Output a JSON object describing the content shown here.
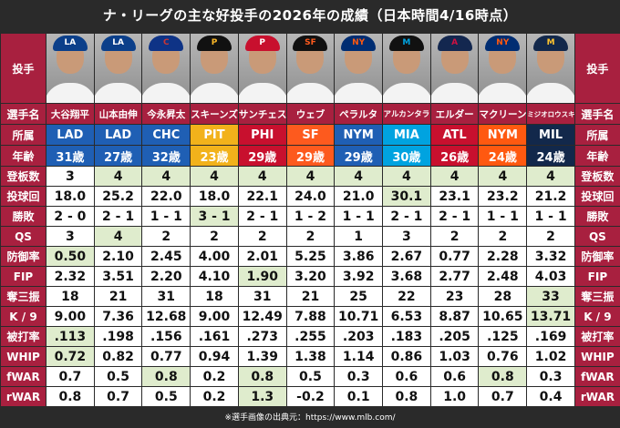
{
  "title": "ナ・リーグの主な好投手の2026年の成績（日本時間4/16時点）",
  "row_labels": {
    "photo": "投手",
    "name": "選手名",
    "team": "所属",
    "age": "年齢"
  },
  "players": [
    {
      "name": "大谷翔平",
      "team": "LAD",
      "age": "31歳",
      "cap_color": "#0b3f8a",
      "logo": "LA",
      "logo_color": "#ffffff",
      "body_color": "#f3f3f3",
      "team_bg": "#1f5fb4",
      "team_fg": "#ffffff"
    },
    {
      "name": "山本由伸",
      "team": "LAD",
      "age": "27歳",
      "cap_color": "#0b3f8a",
      "logo": "LA",
      "logo_color": "#ffffff",
      "body_color": "#f3f3f3",
      "team_bg": "#1f5fb4",
      "team_fg": "#ffffff"
    },
    {
      "name": "今永昇太",
      "team": "CHC",
      "age": "32歳",
      "cap_color": "#0e3386",
      "logo": "C",
      "logo_color": "#cc3433",
      "body_color": "#f3f3f3",
      "team_bg": "#1f5fb4",
      "team_fg": "#ffffff"
    },
    {
      "name": "スキーンズ",
      "team": "PIT",
      "age": "23歳",
      "cap_color": "#111111",
      "logo": "P",
      "logo_color": "#fdb827",
      "body_color": "#f3f3f3",
      "team_bg": "#f2b21b",
      "team_fg": "#ffffff"
    },
    {
      "name": "サンチェス",
      "team": "PHI",
      "age": "29歳",
      "cap_color": "#c8102e",
      "logo": "P",
      "logo_color": "#ffffff",
      "body_color": "#f3f3f3",
      "team_bg": "#c8102e",
      "team_fg": "#ffffff"
    },
    {
      "name": "ウェブ",
      "team": "SF",
      "age": "29歳",
      "cap_color": "#111111",
      "logo": "SF",
      "logo_color": "#fd5a1e",
      "body_color": "#f3f3f3",
      "team_bg": "#fd5a1e",
      "team_fg": "#ffffff"
    },
    {
      "name": "ペラルタ",
      "team": "NYM",
      "age": "29歳",
      "cap_color": "#002d72",
      "logo": "NY",
      "logo_color": "#ff5910",
      "body_color": "#f3f3f3",
      "team_bg": "#1f5fb4",
      "team_fg": "#ffffff"
    },
    {
      "name": "アルカンタラ",
      "team": "MIA",
      "age": "30歳",
      "cap_color": "#111111",
      "logo": "M",
      "logo_color": "#00a3e0",
      "body_color": "#f3f3f3",
      "team_bg": "#00a3e0",
      "team_fg": "#ffffff"
    },
    {
      "name": "エルダー",
      "team": "ATL",
      "age": "26歳",
      "cap_color": "#13274f",
      "logo": "A",
      "logo_color": "#ce1141",
      "body_color": "#f3f3f3",
      "team_bg": "#c8102e",
      "team_fg": "#ffffff"
    },
    {
      "name": "マクリーン",
      "team": "NYM",
      "age": "24歳",
      "cap_color": "#002d72",
      "logo": "NY",
      "logo_color": "#ff5910",
      "body_color": "#f3f3f3",
      "team_bg": "#ff5910",
      "team_fg": "#ffffff"
    },
    {
      "name": "ミジオロウスキー",
      "team": "MIL",
      "age": "24歳",
      "cap_color": "#12284b",
      "logo": "M",
      "logo_color": "#ffc52f",
      "body_color": "#f3f3f3",
      "team_bg": "#12284b",
      "team_fg": "#ffffff"
    }
  ],
  "stats": [
    {
      "label": "登板数",
      "values": [
        "3",
        "4",
        "4",
        "4",
        "4",
        "4",
        "4",
        "4",
        "4",
        "4",
        "4"
      ],
      "hl": [
        false,
        true,
        true,
        true,
        true,
        true,
        true,
        true,
        true,
        true,
        true
      ]
    },
    {
      "label": "投球回",
      "values": [
        "18.0",
        "25.2",
        "22.0",
        "18.0",
        "22.1",
        "24.0",
        "21.0",
        "30.1",
        "23.1",
        "23.2",
        "21.2"
      ],
      "hl": [
        false,
        false,
        false,
        false,
        false,
        false,
        false,
        true,
        false,
        false,
        false
      ]
    },
    {
      "label": "勝敗",
      "values": [
        "2 - 0",
        "2 - 1",
        "1 - 1",
        "3 - 1",
        "2 - 1",
        "1 - 2",
        "1 - 1",
        "2 - 1",
        "2 - 1",
        "1 - 1",
        "1 - 1"
      ],
      "hl": [
        false,
        false,
        false,
        true,
        false,
        false,
        false,
        false,
        false,
        false,
        false
      ]
    },
    {
      "label": "QS",
      "values": [
        "3",
        "4",
        "2",
        "2",
        "2",
        "2",
        "1",
        "3",
        "2",
        "2",
        "2"
      ],
      "hl": [
        false,
        true,
        false,
        false,
        false,
        false,
        false,
        false,
        false,
        false,
        false
      ]
    },
    {
      "label": "防御率",
      "values": [
        "0.50",
        "2.10",
        "2.45",
        "4.00",
        "2.01",
        "5.25",
        "3.86",
        "2.67",
        "0.77",
        "2.28",
        "3.32"
      ],
      "hl": [
        true,
        false,
        false,
        false,
        false,
        false,
        false,
        false,
        false,
        false,
        false
      ]
    },
    {
      "label": "FIP",
      "values": [
        "2.32",
        "3.51",
        "2.20",
        "4.10",
        "1.90",
        "3.20",
        "3.92",
        "3.68",
        "2.77",
        "2.48",
        "4.03"
      ],
      "hl": [
        false,
        false,
        false,
        false,
        true,
        false,
        false,
        false,
        false,
        false,
        false
      ]
    },
    {
      "label": "奪三振",
      "values": [
        "18",
        "21",
        "31",
        "18",
        "31",
        "21",
        "25",
        "22",
        "23",
        "28",
        "33"
      ],
      "hl": [
        false,
        false,
        false,
        false,
        false,
        false,
        false,
        false,
        false,
        false,
        true
      ]
    },
    {
      "label": "K / 9",
      "values": [
        "9.00",
        "7.36",
        "12.68",
        "9.00",
        "12.49",
        "7.88",
        "10.71",
        "6.53",
        "8.87",
        "10.65",
        "13.71"
      ],
      "hl": [
        false,
        false,
        false,
        false,
        false,
        false,
        false,
        false,
        false,
        false,
        true
      ]
    },
    {
      "label": "被打率",
      "values": [
        ".113",
        ".198",
        ".156",
        ".161",
        ".273",
        ".255",
        ".203",
        ".183",
        ".205",
        ".125",
        ".169"
      ],
      "hl": [
        true,
        false,
        false,
        false,
        false,
        false,
        false,
        false,
        false,
        false,
        false
      ]
    },
    {
      "label": "WHIP",
      "values": [
        "0.72",
        "0.82",
        "0.77",
        "0.94",
        "1.39",
        "1.38",
        "1.14",
        "0.86",
        "1.03",
        "0.76",
        "1.02"
      ],
      "hl": [
        true,
        false,
        false,
        false,
        false,
        false,
        false,
        false,
        false,
        false,
        false
      ]
    },
    {
      "label": "fWAR",
      "values": [
        "0.7",
        "0.5",
        "0.8",
        "0.2",
        "0.8",
        "0.5",
        "0.3",
        "0.6",
        "0.6",
        "0.8",
        "0.3"
      ],
      "hl": [
        false,
        false,
        true,
        false,
        true,
        false,
        false,
        false,
        false,
        true,
        false
      ]
    },
    {
      "label": "rWAR",
      "values": [
        "0.8",
        "0.7",
        "0.5",
        "0.2",
        "1.3",
        "-0.2",
        "0.1",
        "0.8",
        "1.0",
        "0.7",
        "0.4"
      ],
      "hl": [
        false,
        false,
        false,
        false,
        true,
        false,
        false,
        false,
        false,
        false,
        false
      ]
    }
  ],
  "footer": "※選手画像の出典元：https://www.mlb.com/",
  "colors": {
    "label_bg": "#a8203f",
    "highlight": "#dfeccd",
    "background": "#2a2a2a"
  }
}
